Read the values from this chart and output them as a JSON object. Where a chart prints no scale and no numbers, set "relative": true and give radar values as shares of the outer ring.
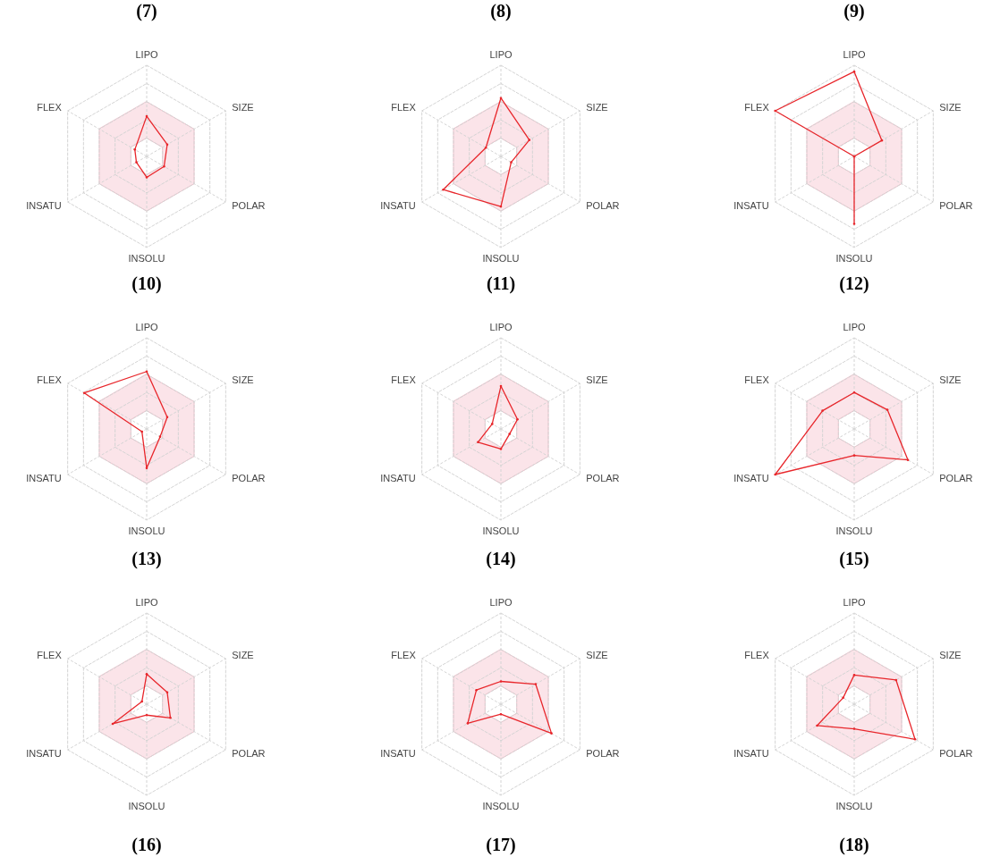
{
  "chart_data": [
    {
      "type": "radar",
      "title": "(7)",
      "relative": true,
      "grid": true,
      "marker": "circle",
      "categories": [
        "LIPO",
        "SIZE",
        "POLAR",
        "INSOLU",
        "INSATU",
        "FLEX"
      ],
      "series": [
        {
          "color": "#e8262b",
          "values": [
            0.44,
            0.26,
            0.22,
            0.23,
            0.13,
            0.15
          ]
        }
      ]
    },
    {
      "type": "radar",
      "title": "(8)",
      "relative": true,
      "grid": true,
      "marker": "circle",
      "categories": [
        "LIPO",
        "SIZE",
        "POLAR",
        "INSOLU",
        "INSATU",
        "FLEX"
      ],
      "series": [
        {
          "color": "#e8262b",
          "values": [
            0.64,
            0.36,
            0.13,
            0.55,
            0.73,
            0.19
          ]
        }
      ]
    },
    {
      "type": "radar",
      "title": "(9)",
      "relative": true,
      "grid": true,
      "marker": "circle",
      "categories": [
        "LIPO",
        "SIZE",
        "POLAR",
        "INSOLU",
        "INSATU",
        "FLEX"
      ],
      "series": [
        {
          "color": "#e8262b",
          "values": [
            0.93,
            0.35,
            0,
            0.74,
            0,
            1
          ]
        }
      ]
    },
    {
      "type": "radar",
      "title": "(10)",
      "relative": true,
      "grid": true,
      "marker": "circle",
      "categories": [
        "LIPO",
        "SIZE",
        "POLAR",
        "INSOLU",
        "INSATU",
        "FLEX"
      ],
      "series": [
        {
          "color": "#e8262b",
          "values": [
            0.63,
            0.26,
            0.17,
            0.43,
            0.06,
            0.79
          ]
        }
      ]
    },
    {
      "type": "radar",
      "title": "(11)",
      "relative": true,
      "grid": true,
      "marker": "circle",
      "categories": [
        "LIPO",
        "SIZE",
        "POLAR",
        "INSOLU",
        "INSATU",
        "FLEX"
      ],
      "series": [
        {
          "color": "#e8262b",
          "values": [
            0.47,
            0.21,
            0.11,
            0.22,
            0.29,
            0.11
          ]
        }
      ]
    },
    {
      "type": "radar",
      "title": "(12)",
      "relative": true,
      "grid": true,
      "marker": "circle",
      "categories": [
        "LIPO",
        "SIZE",
        "POLAR",
        "INSOLU",
        "INSATU",
        "FLEX"
      ],
      "series": [
        {
          "color": "#e8262b",
          "values": [
            0.4,
            0.42,
            0.68,
            0.29,
            1,
            0.4
          ]
        }
      ]
    },
    {
      "type": "radar",
      "title": "(13)",
      "annotations": [
        "(16)"
      ],
      "relative": true,
      "grid": true,
      "marker": "circle",
      "categories": [
        "LIPO",
        "SIZE",
        "POLAR",
        "INSOLU",
        "INSATU",
        "FLEX"
      ],
      "series": [
        {
          "color": "#e8262b",
          "values": [
            0.33,
            0.26,
            0.3,
            0.12,
            0.43,
            0.06
          ]
        }
      ]
    },
    {
      "type": "radar",
      "title": "(14)",
      "annotations": [
        "(17)"
      ],
      "relative": true,
      "grid": true,
      "marker": "circle",
      "categories": [
        "LIPO",
        "SIZE",
        "POLAR",
        "INSOLU",
        "INSATU",
        "FLEX"
      ],
      "series": [
        {
          "color": "#e8262b",
          "values": [
            0.25,
            0.44,
            0.64,
            0.11,
            0.42,
            0.31
          ]
        }
      ]
    },
    {
      "type": "radar",
      "title": "(15)",
      "annotations": [
        "(18)"
      ],
      "relative": true,
      "grid": true,
      "marker": "circle",
      "categories": [
        "LIPO",
        "SIZE",
        "POLAR",
        "INSOLU",
        "INSATU",
        "FLEX"
      ],
      "series": [
        {
          "color": "#e8262b",
          "values": [
            0.32,
            0.53,
            0.77,
            0.27,
            0.47,
            0.14
          ]
        }
      ]
    }
  ]
}
